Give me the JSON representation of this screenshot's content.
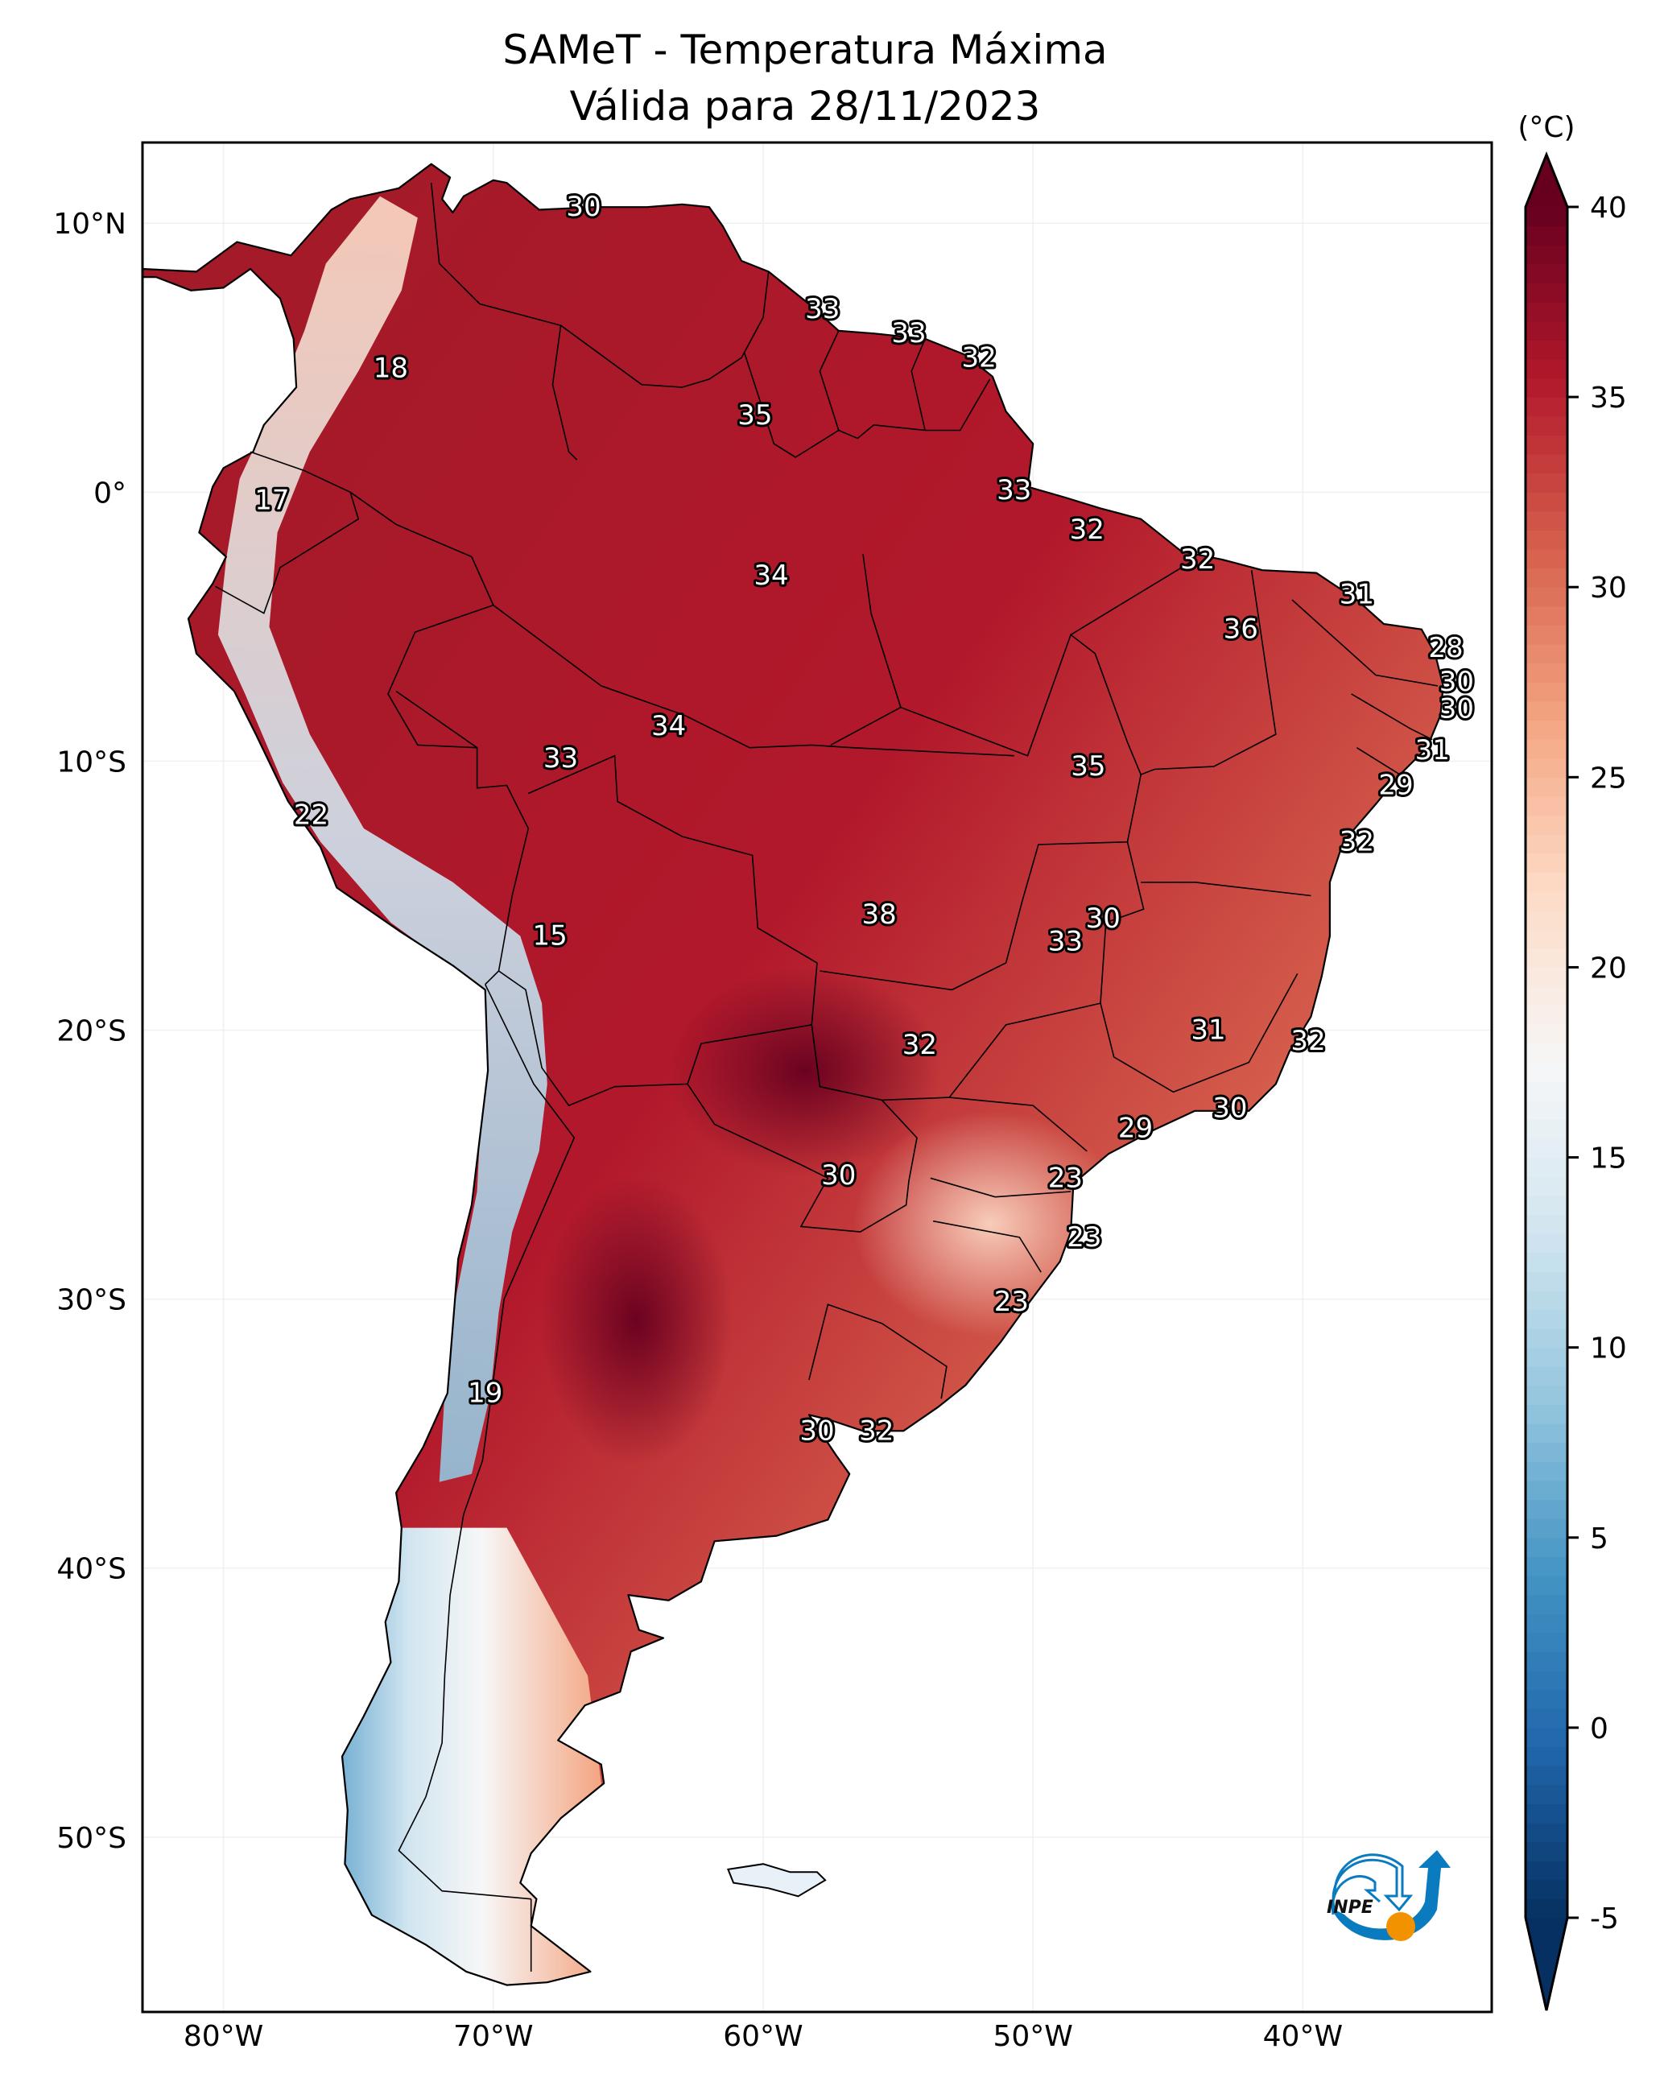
{
  "title": {
    "line1": "SAMeT - Temperatura Máxima",
    "line2": "Válida para 28/11/2023"
  },
  "logo": {
    "text": "INPE",
    "colors": {
      "arc": "#0a7bbf",
      "sun": "#f39200"
    }
  },
  "chart_data": {
    "type": "heatmap",
    "title": "SAMeT - Temperatura Máxima",
    "subtitle": "Válida para 28/11/2023",
    "xlabel": "",
    "ylabel": "",
    "extent": {
      "lon": [
        -83,
        -33
      ],
      "lat": [
        -56.5,
        13
      ]
    },
    "x_ticks": [
      {
        "value": -80,
        "label": "80°W"
      },
      {
        "value": -70,
        "label": "70°W"
      },
      {
        "value": -60,
        "label": "60°W"
      },
      {
        "value": -50,
        "label": "50°W"
      },
      {
        "value": -40,
        "label": "40°W"
      }
    ],
    "y_ticks": [
      {
        "value": 10,
        "label": "10°N"
      },
      {
        "value": 0,
        "label": "0°"
      },
      {
        "value": -10,
        "label": "10°S"
      },
      {
        "value": -20,
        "label": "20°S"
      },
      {
        "value": -30,
        "label": "30°S"
      },
      {
        "value": -40,
        "label": "40°S"
      },
      {
        "value": -50,
        "label": "50°S"
      }
    ],
    "grid": true,
    "colorbar": {
      "label": "(°C)",
      "range": [
        -5,
        40
      ],
      "extend": "both",
      "placement": "right",
      "cmap": "RdBu_r",
      "ticks": [
        {
          "value": 40,
          "label": "40"
        },
        {
          "value": 35,
          "label": "35"
        },
        {
          "value": 30,
          "label": "30"
        },
        {
          "value": 25,
          "label": "25"
        },
        {
          "value": 20,
          "label": "20"
        },
        {
          "value": 15,
          "label": "15"
        },
        {
          "value": 10,
          "label": "10"
        },
        {
          "value": 5,
          "label": "5"
        },
        {
          "value": 0,
          "label": "0"
        },
        {
          "value": -5,
          "label": "-5"
        }
      ],
      "colors": [
        "#053061",
        "#2166ac",
        "#4393c3",
        "#92c5de",
        "#d1e5f0",
        "#f7f7f7",
        "#fddbc7",
        "#f4a582",
        "#d6604d",
        "#b2182b",
        "#67001f"
      ]
    },
    "labels": [
      {
        "value": 30,
        "lon": -66.65,
        "lat": 10.6
      },
      {
        "value": 33,
        "lon": -57.8,
        "lat": 6.8
      },
      {
        "value": 33,
        "lon": -54.6,
        "lat": 5.9
      },
      {
        "value": 32,
        "lon": -52.0,
        "lat": 5.0
      },
      {
        "value": 18,
        "lon": -73.8,
        "lat": 4.6
      },
      {
        "value": 35,
        "lon": -60.3,
        "lat": 2.85
      },
      {
        "value": 17,
        "lon": -78.2,
        "lat": -0.3
      },
      {
        "value": 33,
        "lon": -50.7,
        "lat": 0.07
      },
      {
        "value": 32,
        "lon": -48.0,
        "lat": -1.4
      },
      {
        "value": 32,
        "lon": -43.9,
        "lat": -2.5
      },
      {
        "value": 34,
        "lon": -59.7,
        "lat": -3.1
      },
      {
        "value": 31,
        "lon": -38.0,
        "lat": -3.8
      },
      {
        "value": 36,
        "lon": -42.3,
        "lat": -5.1
      },
      {
        "value": 28,
        "lon": -34.7,
        "lat": -5.8
      },
      {
        "value": 30,
        "lon": -34.3,
        "lat": -7.05
      },
      {
        "value": 30,
        "lon": -34.3,
        "lat": -8.05
      },
      {
        "value": 34,
        "lon": -63.5,
        "lat": -8.7
      },
      {
        "value": 33,
        "lon": -67.5,
        "lat": -9.9
      },
      {
        "value": 31,
        "lon": -35.2,
        "lat": -9.6
      },
      {
        "value": 35,
        "lon": -47.95,
        "lat": -10.2
      },
      {
        "value": 29,
        "lon": -36.55,
        "lat": -10.9
      },
      {
        "value": 22,
        "lon": -76.75,
        "lat": -12.0
      },
      {
        "value": 32,
        "lon": -38.0,
        "lat": -13.0
      },
      {
        "value": 38,
        "lon": -55.7,
        "lat": -15.7
      },
      {
        "value": 30,
        "lon": -47.4,
        "lat": -15.85
      },
      {
        "value": 15,
        "lon": -67.9,
        "lat": -16.5
      },
      {
        "value": 33,
        "lon": -48.8,
        "lat": -16.7
      },
      {
        "value": 31,
        "lon": -43.5,
        "lat": -20.0
      },
      {
        "value": 32,
        "lon": -39.8,
        "lat": -20.4
      },
      {
        "value": 32,
        "lon": -54.2,
        "lat": -20.55
      },
      {
        "value": 30,
        "lon": -42.7,
        "lat": -22.9
      },
      {
        "value": 29,
        "lon": -46.2,
        "lat": -23.65
      },
      {
        "value": 30,
        "lon": -57.2,
        "lat": -25.4
      },
      {
        "value": 23,
        "lon": -48.8,
        "lat": -25.5
      },
      {
        "value": 23,
        "lon": -48.1,
        "lat": -27.7
      },
      {
        "value": 23,
        "lon": -50.8,
        "lat": -30.1
      },
      {
        "value": 19,
        "lon": -70.3,
        "lat": -33.5
      },
      {
        "value": 30,
        "lon": -58.0,
        "lat": -34.9
      },
      {
        "value": 32,
        "lon": -55.8,
        "lat": -34.9
      }
    ]
  }
}
